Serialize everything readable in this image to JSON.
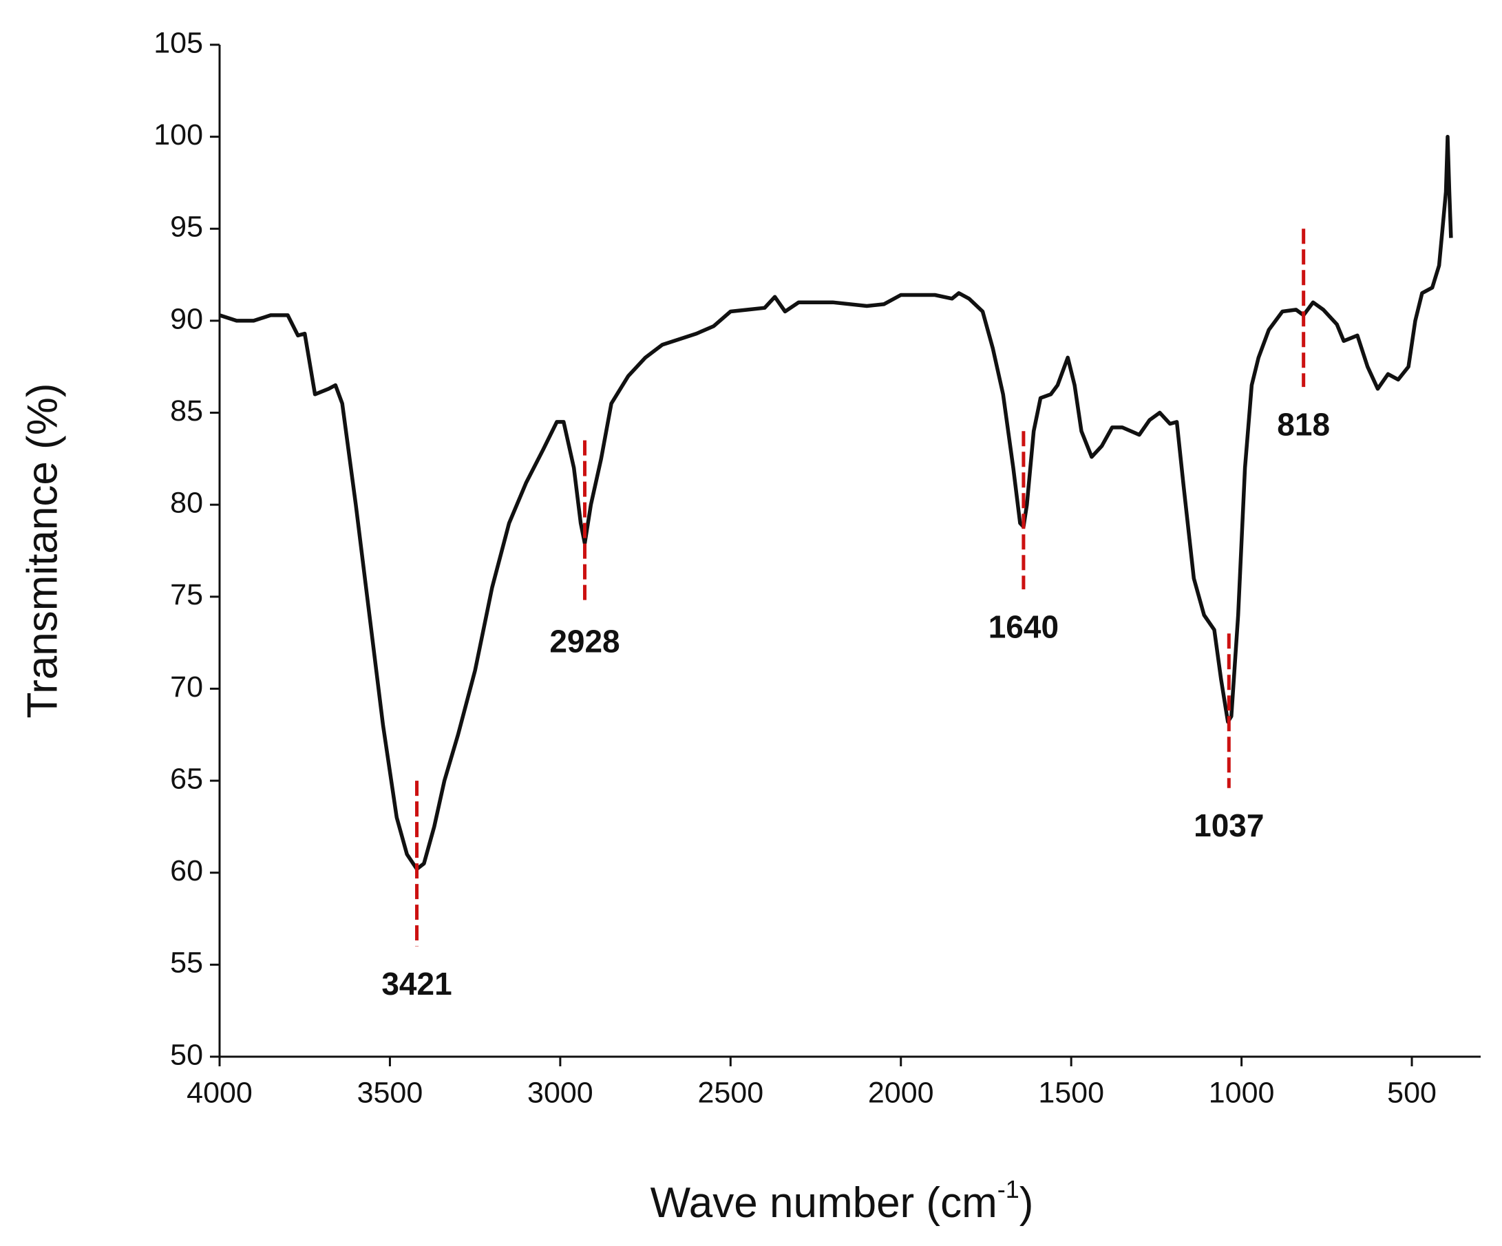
{
  "chart_data": {
    "type": "line",
    "x_label": "Wave number (cm",
    "x_label_sup": "-1",
    "x_label_end": ")",
    "y_label": "Transmitance (%)",
    "xlim": [
      4000,
      298
    ],
    "ylim": [
      50,
      105
    ],
    "xticks": [
      4000,
      3500,
      3000,
      2500,
      2000,
      1500,
      1000,
      500
    ],
    "yticks": [
      50,
      55,
      60,
      65,
      70,
      75,
      80,
      85,
      90,
      95,
      100,
      105
    ],
    "series": [
      {
        "color": "#111111",
        "x": [
          4000,
          3950,
          3900,
          3850,
          3800,
          3770,
          3750,
          3720,
          3680,
          3660,
          3640,
          3600,
          3560,
          3520,
          3480,
          3450,
          3421,
          3400,
          3370,
          3340,
          3300,
          3250,
          3200,
          3150,
          3100,
          3050,
          3010,
          2990,
          2960,
          2940,
          2928,
          2910,
          2880,
          2850,
          2800,
          2750,
          2700,
          2600,
          2550,
          2500,
          2450,
          2400,
          2370,
          2340,
          2300,
          2200,
          2100,
          2050,
          2000,
          1900,
          1850,
          1830,
          1800,
          1760,
          1730,
          1700,
          1670,
          1650,
          1640,
          1630,
          1610,
          1590,
          1560,
          1540,
          1510,
          1490,
          1470,
          1440,
          1410,
          1380,
          1350,
          1300,
          1270,
          1240,
          1210,
          1190,
          1170,
          1140,
          1110,
          1080,
          1060,
          1040,
          1030,
          1010,
          990,
          970,
          950,
          920,
          880,
          840,
          818,
          790,
          760,
          720,
          700,
          660,
          630,
          600,
          570,
          540,
          510,
          490,
          470,
          440,
          420,
          410,
          400,
          395,
          390,
          385
        ],
        "values": [
          90.3,
          90.0,
          90.0,
          90.3,
          90.3,
          89.2,
          89.3,
          86.0,
          86.3,
          86.5,
          85.5,
          80,
          74,
          68,
          63,
          61,
          60.2,
          60.5,
          62.5,
          65,
          67.5,
          71,
          75.5,
          79,
          81.2,
          83,
          84.5,
          84.5,
          82,
          79,
          77.9,
          80,
          82.5,
          85.5,
          87,
          88,
          88.7,
          89.3,
          89.7,
          90.5,
          90.6,
          90.7,
          91.3,
          90.5,
          91.0,
          91.0,
          90.8,
          90.9,
          91.4,
          91.4,
          91.2,
          91.5,
          91.2,
          90.5,
          88.5,
          86,
          82,
          79,
          78.8,
          80,
          84,
          85.8,
          86,
          86.5,
          88,
          86.5,
          84,
          82.6,
          83.2,
          84.2,
          84.2,
          83.8,
          84.6,
          85,
          84.4,
          84.5,
          81,
          76,
          74,
          73.2,
          70.5,
          68.2,
          68.5,
          74,
          82,
          86.5,
          88,
          89.5,
          90.5,
          90.6,
          90.3,
          91.0,
          90.6,
          89.8,
          88.9,
          89.2,
          87.5,
          86.3,
          87.1,
          86.8,
          87.5,
          90,
          91.5,
          91.8,
          93,
          95,
          97,
          100,
          97,
          94.5
        ]
      }
    ],
    "annotations_color": "#cc1111",
    "annotations": [
      {
        "x": 3421,
        "y": [
          65,
          56
        ]
      },
      {
        "x": 2928,
        "y": [
          83.5,
          74.6
        ]
      },
      {
        "x": 1640,
        "y": [
          84,
          75.4
        ]
      },
      {
        "x": 1037,
        "y": [
          73,
          64.6
        ]
      },
      {
        "x": 818,
        "y": [
          95,
          86.4
        ]
      }
    ]
  }
}
